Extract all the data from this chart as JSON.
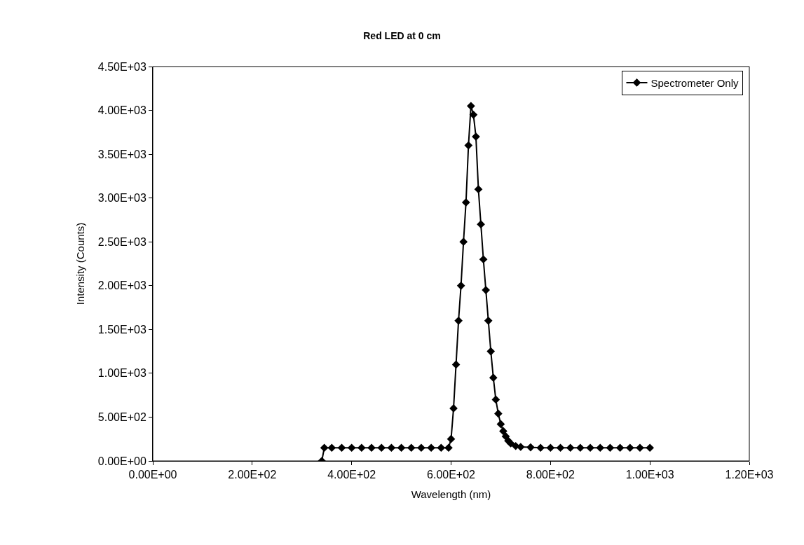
{
  "chart_data": {
    "type": "line",
    "title": "Red LED at 0 cm",
    "xlabel": "Wavelength (nm)",
    "ylabel": "Intensity (Counts)",
    "x": [
      340,
      345,
      360,
      380,
      400,
      420,
      440,
      460,
      480,
      500,
      520,
      540,
      560,
      580,
      595,
      600,
      605,
      610,
      615,
      620,
      625,
      630,
      635,
      640,
      645,
      650,
      655,
      660,
      665,
      670,
      675,
      680,
      685,
      690,
      695,
      700,
      705,
      710,
      715,
      720,
      730,
      740,
      760,
      780,
      800,
      820,
      840,
      860,
      880,
      900,
      920,
      940,
      960,
      980,
      1000
    ],
    "series": [
      {
        "name": "Spectrometer Only",
        "color": "#000000",
        "values": [
          0,
          150,
          150,
          150,
          150,
          150,
          150,
          150,
          150,
          150,
          150,
          150,
          150,
          150,
          150,
          250,
          600,
          1100,
          1600,
          2000,
          2500,
          2950,
          3600,
          4050,
          3950,
          3700,
          3100,
          2700,
          2300,
          1950,
          1600,
          1250,
          950,
          700,
          540,
          420,
          340,
          280,
          230,
          200,
          170,
          160,
          155,
          150,
          150,
          150,
          150,
          150,
          150,
          150,
          150,
          150,
          150,
          150,
          150
        ]
      }
    ],
    "xlim": [
      0,
      1200
    ],
    "xticks": [
      {
        "value": 0,
        "label": "0.00E+00"
      },
      {
        "value": 200,
        "label": "2.00E+02"
      },
      {
        "value": 400,
        "label": "4.00E+02"
      },
      {
        "value": 600,
        "label": "6.00E+02"
      },
      {
        "value": 800,
        "label": "8.00E+02"
      },
      {
        "value": 1000,
        "label": "1.00E+03"
      },
      {
        "value": 1200,
        "label": "1.20E+03"
      }
    ],
    "ylim": [
      0,
      4500
    ],
    "yticks": [
      {
        "value": 0,
        "label": "0.00E+00"
      },
      {
        "value": 500,
        "label": "5.00E+02"
      },
      {
        "value": 1000,
        "label": "1.00E+03"
      },
      {
        "value": 1500,
        "label": "1.50E+03"
      },
      {
        "value": 2000,
        "label": "2.00E+03"
      },
      {
        "value": 2500,
        "label": "2.50E+03"
      },
      {
        "value": 3000,
        "label": "3.00E+03"
      },
      {
        "value": 3500,
        "label": "3.50E+03"
      },
      {
        "value": 4000,
        "label": "4.00E+03"
      },
      {
        "value": 4500,
        "label": "4.50E+03"
      }
    ],
    "grid": false,
    "legend": "top right",
    "marker": "diamond",
    "line_style": "solid"
  }
}
